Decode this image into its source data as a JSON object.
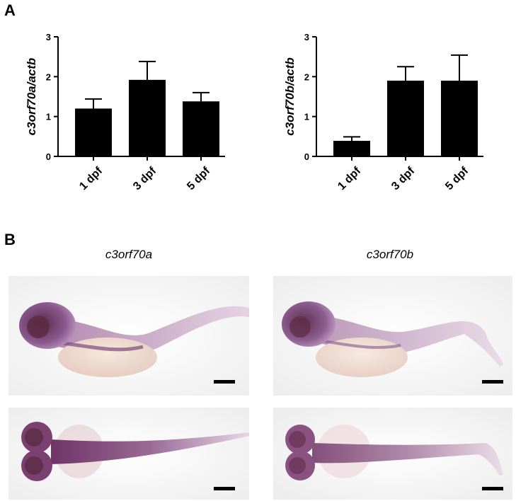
{
  "panel_a_label": "A",
  "panel_b_label": "B",
  "chart_data": [
    {
      "type": "bar",
      "ylabel": "c3orf70a/actb",
      "xlabel": "",
      "categories": [
        "1 dpf",
        "3 dpf",
        "5 dpf"
      ],
      "values": [
        1.2,
        1.92,
        1.38
      ],
      "errors": [
        0.24,
        0.46,
        0.22
      ],
      "ylim": [
        0,
        3
      ],
      "yticks": [
        0,
        1,
        2,
        3
      ],
      "bar_color": "#000000",
      "grid": false
    },
    {
      "type": "bar",
      "ylabel": "c3orf70b/actb",
      "xlabel": "",
      "categories": [
        "1 dpf",
        "3 dpf",
        "5 dpf"
      ],
      "values": [
        0.39,
        1.9,
        1.9
      ],
      "errors": [
        0.1,
        0.35,
        0.64
      ],
      "ylim": [
        0,
        3
      ],
      "yticks": [
        0,
        1,
        2,
        3
      ],
      "bar_color": "#000000",
      "grid": false
    }
  ],
  "panel_b": {
    "columns": [
      "c3orf70a",
      "c3orf70b"
    ]
  }
}
